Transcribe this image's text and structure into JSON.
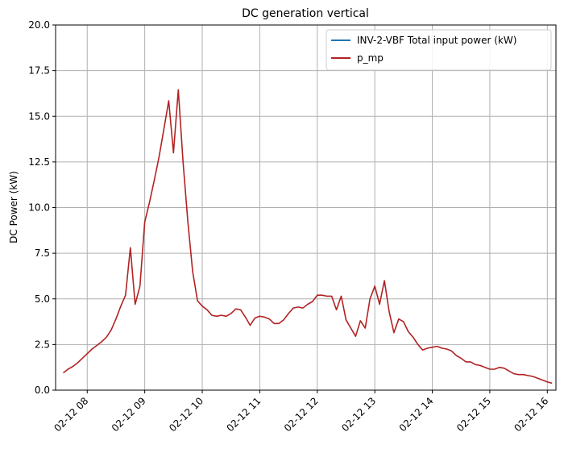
{
  "chart_data": {
    "type": "line",
    "title": "DC generation vertical",
    "xlabel": "",
    "ylabel": "DC Power (kW)",
    "ylim": [
      0,
      20
    ],
    "xlim": [
      "02-12 07:27",
      "02-12 16:09"
    ],
    "grid": true,
    "legend_position": "top-right",
    "x_ticks": [
      "02-12 08",
      "02-12 09",
      "02-12 10",
      "02-12 11",
      "02-12 12",
      "02-12 13",
      "02-12 14",
      "02-12 15",
      "02-12 16"
    ],
    "y_ticks": [
      "0.0",
      "2.5",
      "5.0",
      "7.5",
      "10.0",
      "12.5",
      "15.0",
      "17.5",
      "20.0"
    ],
    "series": [
      {
        "name": "INV-2-VBF Total input power (kW)",
        "color": "#1f77b4",
        "points": []
      },
      {
        "name": "p_mp",
        "color": "#b22222",
        "points": [
          [
            "02-12 07:35",
            0.95
          ],
          [
            "02-12 07:40",
            1.15
          ],
          [
            "02-12 07:45",
            1.3
          ],
          [
            "02-12 07:50",
            1.5
          ],
          [
            "02-12 07:55",
            1.75
          ],
          [
            "02-12 08:00",
            2.0
          ],
          [
            "02-12 08:05",
            2.25
          ],
          [
            "02-12 08:10",
            2.45
          ],
          [
            "02-12 08:15",
            2.65
          ],
          [
            "02-12 08:20",
            2.9
          ],
          [
            "02-12 08:25",
            3.3
          ],
          [
            "02-12 08:30",
            3.9
          ],
          [
            "02-12 08:35",
            4.6
          ],
          [
            "02-12 08:40",
            5.2
          ],
          [
            "02-12 08:45",
            7.8
          ],
          [
            "02-12 08:50",
            4.7
          ],
          [
            "02-12 08:55",
            5.7
          ],
          [
            "02-12 09:00",
            9.2
          ],
          [
            "02-12 09:05",
            10.3
          ],
          [
            "02-12 09:10",
            11.5
          ],
          [
            "02-12 09:15",
            12.8
          ],
          [
            "02-12 09:20",
            14.3
          ],
          [
            "02-12 09:25",
            15.85
          ],
          [
            "02-12 09:30",
            13.0
          ],
          [
            "02-12 09:35",
            16.45
          ],
          [
            "02-12 09:40",
            12.5
          ],
          [
            "02-12 09:45",
            9.2
          ],
          [
            "02-12 09:50",
            6.5
          ],
          [
            "02-12 09:55",
            4.9
          ],
          [
            "02-12 10:00",
            4.6
          ],
          [
            "02-12 10:05",
            4.4
          ],
          [
            "02-12 10:10",
            4.1
          ],
          [
            "02-12 10:15",
            4.05
          ],
          [
            "02-12 10:20",
            4.1
          ],
          [
            "02-12 10:25",
            4.05
          ],
          [
            "02-12 10:30",
            4.2
          ],
          [
            "02-12 10:35",
            4.45
          ],
          [
            "02-12 10:40",
            4.4
          ],
          [
            "02-12 10:45",
            4.0
          ],
          [
            "02-12 10:50",
            3.55
          ],
          [
            "02-12 10:55",
            3.95
          ],
          [
            "02-12 11:00",
            4.05
          ],
          [
            "02-12 11:05",
            4.0
          ],
          [
            "02-12 11:10",
            3.9
          ],
          [
            "02-12 11:15",
            3.65
          ],
          [
            "02-12 11:20",
            3.65
          ],
          [
            "02-12 11:25",
            3.85
          ],
          [
            "02-12 11:30",
            4.2
          ],
          [
            "02-12 11:35",
            4.5
          ],
          [
            "02-12 11:40",
            4.55
          ],
          [
            "02-12 11:45",
            4.5
          ],
          [
            "02-12 11:50",
            4.7
          ],
          [
            "02-12 11:55",
            4.85
          ],
          [
            "02-12 12:00",
            5.2
          ],
          [
            "02-12 12:05",
            5.2
          ],
          [
            "02-12 12:10",
            5.15
          ],
          [
            "02-12 12:15",
            5.15
          ],
          [
            "02-12 12:20",
            4.4
          ],
          [
            "02-12 12:25",
            5.15
          ],
          [
            "02-12 12:30",
            3.85
          ],
          [
            "02-12 12:35",
            3.4
          ],
          [
            "02-12 12:40",
            2.95
          ],
          [
            "02-12 12:45",
            3.8
          ],
          [
            "02-12 12:50",
            3.4
          ],
          [
            "02-12 12:55",
            5.0
          ],
          [
            "02-12 13:00",
            5.7
          ],
          [
            "02-12 13:05",
            4.7
          ],
          [
            "02-12 13:10",
            6.0
          ],
          [
            "02-12 13:15",
            4.3
          ],
          [
            "02-12 13:20",
            3.15
          ],
          [
            "02-12 13:25",
            3.9
          ],
          [
            "02-12 13:30",
            3.75
          ],
          [
            "02-12 13:35",
            3.2
          ],
          [
            "02-12 13:40",
            2.9
          ],
          [
            "02-12 13:45",
            2.5
          ],
          [
            "02-12 13:50",
            2.2
          ],
          [
            "02-12 13:55",
            2.3
          ],
          [
            "02-12 14:00",
            2.35
          ],
          [
            "02-12 14:05",
            2.4
          ],
          [
            "02-12 14:10",
            2.3
          ],
          [
            "02-12 14:15",
            2.25
          ],
          [
            "02-12 14:20",
            2.15
          ],
          [
            "02-12 14:25",
            1.9
          ],
          [
            "02-12 14:30",
            1.75
          ],
          [
            "02-12 14:35",
            1.55
          ],
          [
            "02-12 14:40",
            1.55
          ],
          [
            "02-12 14:45",
            1.4
          ],
          [
            "02-12 14:50",
            1.35
          ],
          [
            "02-12 14:55",
            1.25
          ],
          [
            "02-12 15:00",
            1.15
          ],
          [
            "02-12 15:05",
            1.15
          ],
          [
            "02-12 15:10",
            1.25
          ],
          [
            "02-12 15:15",
            1.2
          ],
          [
            "02-12 15:20",
            1.05
          ],
          [
            "02-12 15:25",
            0.9
          ],
          [
            "02-12 15:30",
            0.85
          ],
          [
            "02-12 15:35",
            0.85
          ],
          [
            "02-12 15:40",
            0.8
          ],
          [
            "02-12 15:45",
            0.75
          ],
          [
            "02-12 15:50",
            0.65
          ],
          [
            "02-12 15:55",
            0.55
          ],
          [
            "02-12 16:00",
            0.45
          ],
          [
            "02-12 16:05",
            0.38
          ]
        ]
      }
    ]
  }
}
